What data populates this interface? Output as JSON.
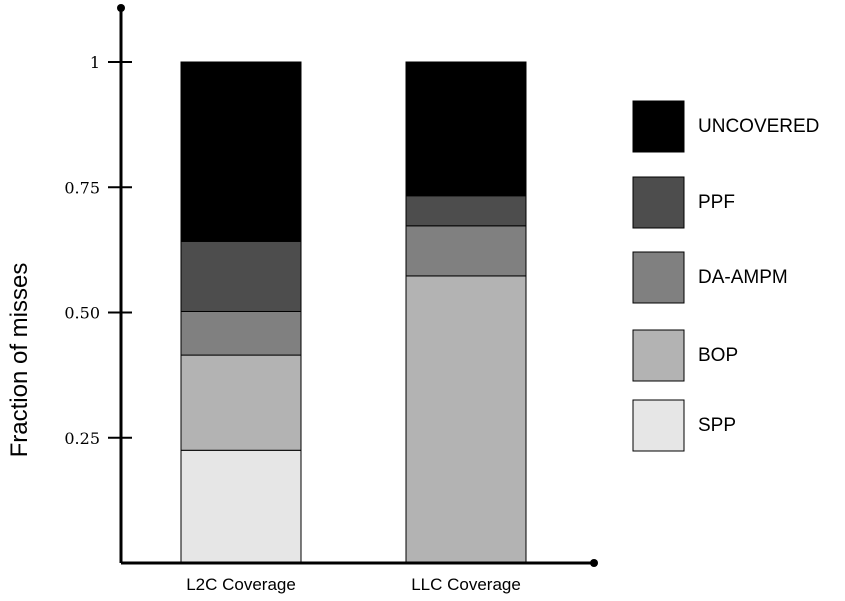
{
  "chart_data": {
    "type": "bar",
    "stacked": true,
    "title": "",
    "xlabel": "",
    "ylabel": "Fraction of misses",
    "ylim": [
      0,
      1
    ],
    "yticks": [
      {
        "value": 0.25,
        "label": "0.25"
      },
      {
        "value": 0.5,
        "label": "0.50"
      },
      {
        "value": 0.75,
        "label": "0.75"
      },
      {
        "value": 1,
        "label": "1"
      }
    ],
    "grid": false,
    "legend_position": "right",
    "categories": [
      "L2C Coverage",
      "LLC Coverage"
    ],
    "series": [
      {
        "name": "SPP",
        "color": "#e6e6e6",
        "values": [
          0.225,
          0.0
        ]
      },
      {
        "name": "BOP",
        "color": "#b3b3b3",
        "values": [
          0.19,
          0.573
        ]
      },
      {
        "name": "DA-AMPM",
        "color": "#808080",
        "values": [
          0.087,
          0.1
        ]
      },
      {
        "name": "PPF",
        "color": "#4d4d4d",
        "values": [
          0.14,
          0.06
        ]
      },
      {
        "name": "UNCOVERED",
        "color": "#000000",
        "values": [
          0.358,
          0.267
        ]
      }
    ]
  }
}
